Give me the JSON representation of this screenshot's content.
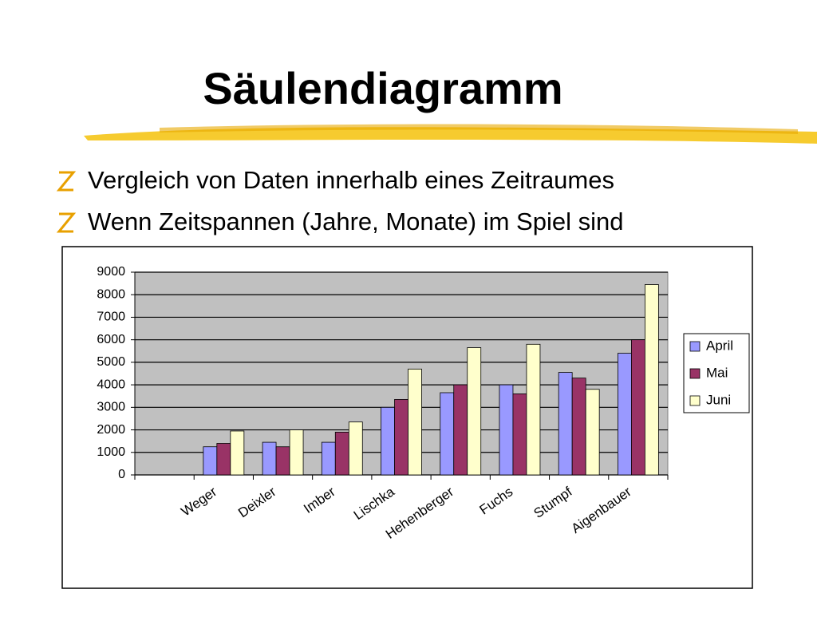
{
  "slide": {
    "title": "Säulendiagramm",
    "bullets": [
      "Vergleich von Daten innerhalb eines Zeitraumes",
      "Wenn Zeitspannen (Jahre, Monate) im Spiel sind"
    ]
  },
  "chart_data": {
    "type": "bar",
    "categories": [
      null,
      "Weger",
      "Deixler",
      "Imber",
      "Lischka",
      "Hehenberger",
      "Fuchs",
      "Stumpf",
      "Aigenbauer"
    ],
    "series": [
      {
        "name": "April",
        "color": "#9999ff",
        "values": [
          null,
          1250,
          1450,
          1450,
          3000,
          3650,
          4000,
          4550,
          5400
        ]
      },
      {
        "name": "Mai",
        "color": "#993366",
        "values": [
          null,
          1400,
          1250,
          1900,
          3350,
          4000,
          3600,
          4300,
          6000
        ]
      },
      {
        "name": "Juni",
        "color": "#ffffcc",
        "values": [
          null,
          1950,
          2000,
          2350,
          4700,
          5650,
          5800,
          3800,
          8450
        ]
      }
    ],
    "ylim": [
      0,
      9000
    ],
    "yticks": [
      0,
      1000,
      2000,
      3000,
      4000,
      5000,
      6000,
      7000,
      8000,
      9000
    ],
    "grid": true,
    "legend": "right"
  }
}
